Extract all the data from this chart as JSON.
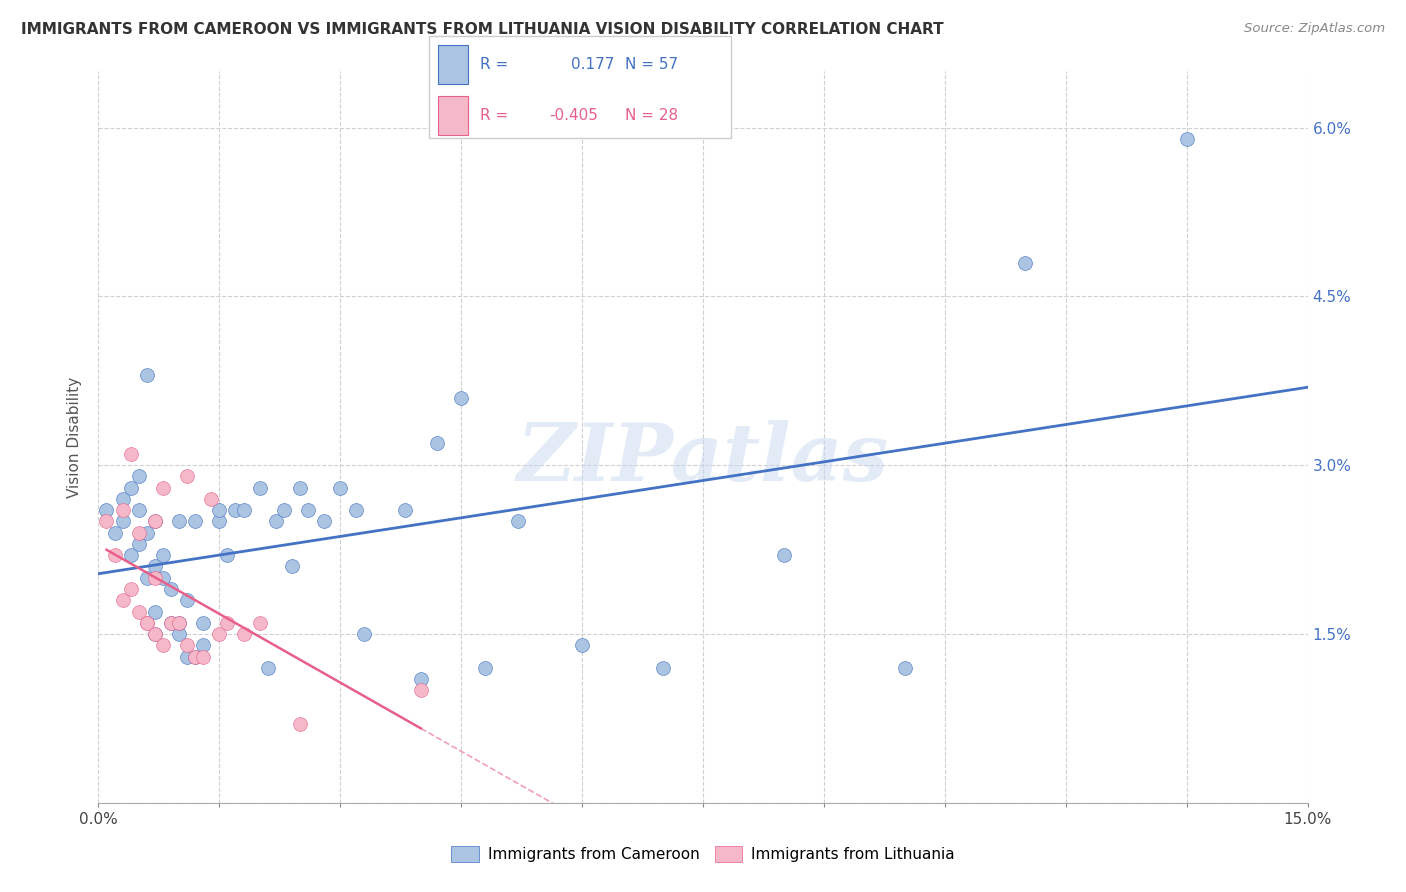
{
  "title": "IMMIGRANTS FROM CAMEROON VS IMMIGRANTS FROM LITHUANIA VISION DISABILITY CORRELATION CHART",
  "source": "Source: ZipAtlas.com",
  "ylabel": "Vision Disability",
  "xlim": [
    0.0,
    0.15
  ],
  "ylim": [
    0.0,
    0.065
  ],
  "xticks": [
    0.0,
    0.015,
    0.03,
    0.045,
    0.06,
    0.075,
    0.09,
    0.105,
    0.12,
    0.135,
    0.15
  ],
  "xticklabels": [
    "0.0%",
    "",
    "",
    "",
    "",
    "",
    "",
    "",
    "",
    "",
    "15.0%"
  ],
  "yticks": [
    0.0,
    0.015,
    0.03,
    0.045,
    0.06
  ],
  "yticklabels": [
    "",
    "1.5%",
    "3.0%",
    "4.5%",
    "6.0%"
  ],
  "r_cameroon": 0.177,
  "n_cameroon": 57,
  "r_lithuania": -0.405,
  "n_lithuania": 28,
  "color_cameroon": "#aac4e2",
  "color_lithuania": "#f5b8c8",
  "line_color_cameroon": "#4472c4",
  "line_color_lithuania": "#e8608a",
  "background_color": "#ffffff",
  "grid_color": "#d0d0d0",
  "watermark": "ZIPatlas",
  "cameroon_x": [
    0.001,
    0.002,
    0.003,
    0.003,
    0.004,
    0.004,
    0.005,
    0.005,
    0.005,
    0.006,
    0.006,
    0.006,
    0.007,
    0.007,
    0.007,
    0.007,
    0.008,
    0.008,
    0.009,
    0.009,
    0.01,
    0.01,
    0.01,
    0.011,
    0.011,
    0.012,
    0.012,
    0.013,
    0.013,
    0.015,
    0.015,
    0.016,
    0.017,
    0.018,
    0.02,
    0.021,
    0.022,
    0.023,
    0.024,
    0.025,
    0.026,
    0.028,
    0.03,
    0.032,
    0.033,
    0.038,
    0.04,
    0.042,
    0.045,
    0.048,
    0.052,
    0.06,
    0.07,
    0.085,
    0.1,
    0.115,
    0.135
  ],
  "cameroon_y": [
    0.026,
    0.024,
    0.025,
    0.027,
    0.022,
    0.028,
    0.023,
    0.026,
    0.029,
    0.02,
    0.024,
    0.038,
    0.021,
    0.025,
    0.015,
    0.017,
    0.02,
    0.022,
    0.016,
    0.019,
    0.015,
    0.016,
    0.025,
    0.013,
    0.018,
    0.013,
    0.025,
    0.014,
    0.016,
    0.025,
    0.026,
    0.022,
    0.026,
    0.026,
    0.028,
    0.012,
    0.025,
    0.026,
    0.021,
    0.028,
    0.026,
    0.025,
    0.028,
    0.026,
    0.015,
    0.026,
    0.011,
    0.032,
    0.036,
    0.012,
    0.025,
    0.014,
    0.012,
    0.022,
    0.012,
    0.048,
    0.059
  ],
  "lithuania_x": [
    0.001,
    0.002,
    0.003,
    0.003,
    0.004,
    0.004,
    0.005,
    0.005,
    0.006,
    0.006,
    0.007,
    0.007,
    0.007,
    0.008,
    0.008,
    0.009,
    0.01,
    0.011,
    0.011,
    0.012,
    0.013,
    0.014,
    0.015,
    0.016,
    0.018,
    0.02,
    0.025,
    0.04
  ],
  "lithuania_y": [
    0.025,
    0.022,
    0.018,
    0.026,
    0.019,
    0.031,
    0.024,
    0.017,
    0.016,
    0.016,
    0.015,
    0.02,
    0.025,
    0.014,
    0.028,
    0.016,
    0.016,
    0.014,
    0.029,
    0.013,
    0.013,
    0.027,
    0.015,
    0.016,
    0.015,
    0.016,
    0.007,
    0.01
  ]
}
